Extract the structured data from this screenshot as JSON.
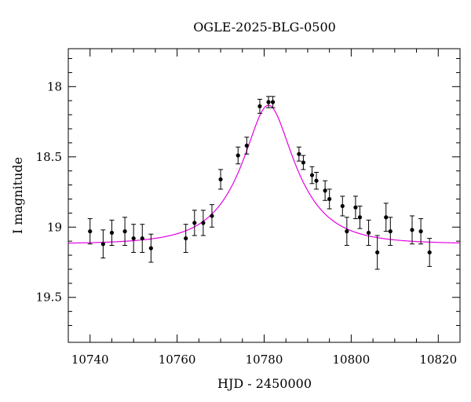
{
  "chart_data": {
    "type": "scatter",
    "title": "OGLE-2025-BLG-0500",
    "xlabel": "HJD - 2450000",
    "ylabel": "I magnitude",
    "xlim": [
      10735,
      10825
    ],
    "ylim": [
      19.82,
      17.73
    ],
    "y_inverted": true,
    "grid": false,
    "x_ticks": [
      10740,
      10760,
      10780,
      10800,
      10820
    ],
    "x_tick_labels": [
      "10740",
      "10760",
      "10780",
      "10800",
      "10820"
    ],
    "y_ticks": [
      18,
      18.5,
      19,
      19.5
    ],
    "y_tick_labels": [
      "18",
      "18.5",
      "19",
      "19.5"
    ],
    "model_color": "#e400e4",
    "point_color": "#000000",
    "model": {
      "t0": 10781,
      "tE": 11.3,
      "u0": 0.43,
      "baseline": 19.12
    },
    "points": [
      {
        "x": 10740.0,
        "y": 19.03,
        "err": 0.09
      },
      {
        "x": 10743.0,
        "y": 19.12,
        "err": 0.1
      },
      {
        "x": 10745.0,
        "y": 19.04,
        "err": 0.09
      },
      {
        "x": 10748.0,
        "y": 19.03,
        "err": 0.1
      },
      {
        "x": 10750.0,
        "y": 19.08,
        "err": 0.1
      },
      {
        "x": 10752.0,
        "y": 19.08,
        "err": 0.1
      },
      {
        "x": 10754.0,
        "y": 19.15,
        "err": 0.1
      },
      {
        "x": 10762.0,
        "y": 19.08,
        "err": 0.1
      },
      {
        "x": 10764.0,
        "y": 18.97,
        "err": 0.09
      },
      {
        "x": 10766.0,
        "y": 18.97,
        "err": 0.09
      },
      {
        "x": 10768.0,
        "y": 18.92,
        "err": 0.08
      },
      {
        "x": 10770.0,
        "y": 18.66,
        "err": 0.07
      },
      {
        "x": 10774.0,
        "y": 18.49,
        "err": 0.06
      },
      {
        "x": 10776.0,
        "y": 18.42,
        "err": 0.06
      },
      {
        "x": 10779.0,
        "y": 18.14,
        "err": 0.05
      },
      {
        "x": 10781.0,
        "y": 18.11,
        "err": 0.04
      },
      {
        "x": 10782.0,
        "y": 18.11,
        "err": 0.04
      },
      {
        "x": 10788.0,
        "y": 18.48,
        "err": 0.05
      },
      {
        "x": 10789.0,
        "y": 18.54,
        "err": 0.05
      },
      {
        "x": 10791.0,
        "y": 18.63,
        "err": 0.06
      },
      {
        "x": 10792.0,
        "y": 18.67,
        "err": 0.06
      },
      {
        "x": 10794.0,
        "y": 18.74,
        "err": 0.07
      },
      {
        "x": 10795.0,
        "y": 18.8,
        "err": 0.07
      },
      {
        "x": 10798.0,
        "y": 18.85,
        "err": 0.07
      },
      {
        "x": 10799.0,
        "y": 19.03,
        "err": 0.1
      },
      {
        "x": 10801.0,
        "y": 18.86,
        "err": 0.08
      },
      {
        "x": 10802.0,
        "y": 18.93,
        "err": 0.08
      },
      {
        "x": 10804.0,
        "y": 19.04,
        "err": 0.09
      },
      {
        "x": 10806.0,
        "y": 19.18,
        "err": 0.12
      },
      {
        "x": 10808.0,
        "y": 18.93,
        "err": 0.1
      },
      {
        "x": 10809.0,
        "y": 19.03,
        "err": 0.1
      },
      {
        "x": 10814.0,
        "y": 19.02,
        "err": 0.1
      },
      {
        "x": 10816.0,
        "y": 19.03,
        "err": 0.09
      },
      {
        "x": 10818.0,
        "y": 19.18,
        "err": 0.1
      }
    ]
  }
}
